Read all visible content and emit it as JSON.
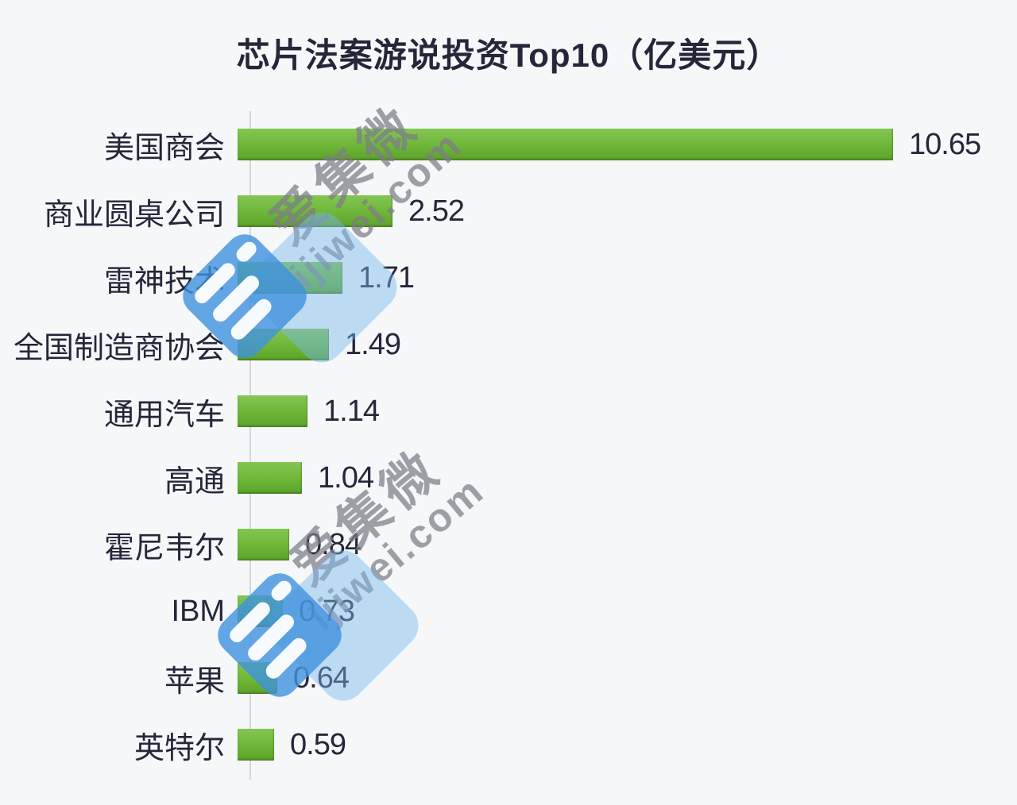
{
  "title": "芯片法案游说投资Top10（亿美元）",
  "chart_data": {
    "type": "bar",
    "orientation": "horizontal",
    "title": "芯片法案游说投资Top10（亿美元）",
    "unit": "亿美元",
    "categories": [
      "美国商会",
      "商业圆桌公司",
      "雷神技术",
      "全国制造商协会",
      "通用汽车",
      "高通",
      "霍尼韦尔",
      "IBM",
      "苹果",
      "英特尔"
    ],
    "values": [
      10.65,
      2.52,
      1.71,
      1.49,
      1.14,
      1.04,
      0.84,
      0.73,
      0.64,
      0.59
    ],
    "value_labels": [
      "10.65",
      "2.52",
      "1.71",
      "1.49",
      "1.14",
      "1.04",
      "0.84",
      "0.73",
      "0.64",
      "0.59"
    ],
    "xlim": [
      0,
      11
    ],
    "grid": false,
    "legend": false,
    "bar_color": "#6db637"
  },
  "watermark": {
    "brand_text": "爱集微",
    "brand_url": "ijiwei.com",
    "logo_color": "#4091de"
  },
  "colors": {
    "background": "#f5f7f8",
    "bar_top": "#84c654",
    "bar_bottom": "#5ca22b",
    "text": "#26263a",
    "axis_line": "#9aa2a6",
    "watermark_gray": "#7d7d88",
    "watermark_blue": "#4091de"
  }
}
